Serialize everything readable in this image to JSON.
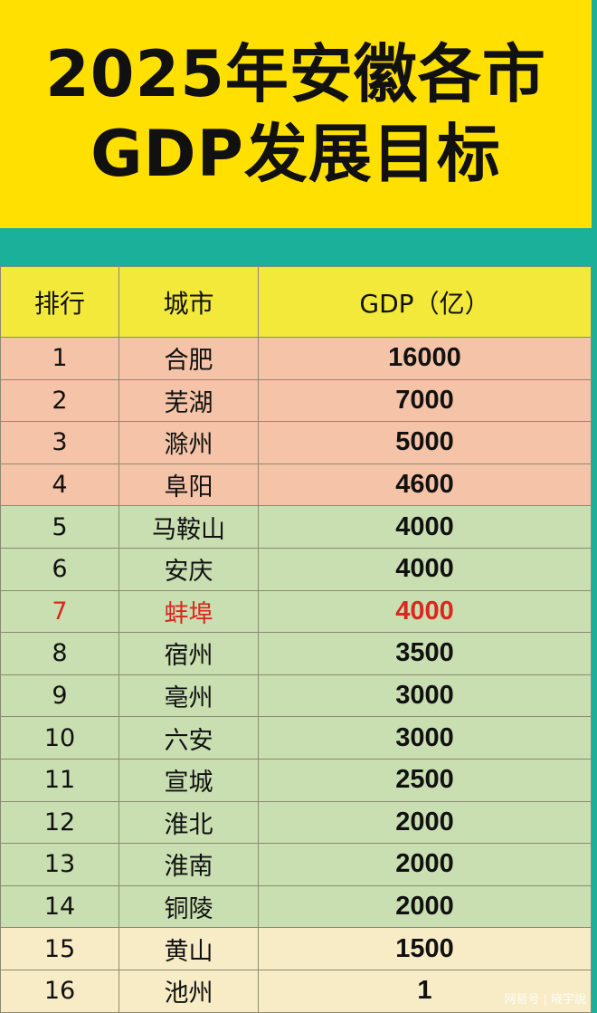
{
  "title": {
    "line1": "2025年安徽各市",
    "line2": "GDP发展目标"
  },
  "table": {
    "headers": [
      "排行",
      "城市",
      "GDP（亿）"
    ],
    "rows": [
      {
        "rank": "1",
        "city": "合肥",
        "gdp": "16000",
        "group": "pink"
      },
      {
        "rank": "2",
        "city": "芜湖",
        "gdp": "7000",
        "group": "pink"
      },
      {
        "rank": "3",
        "city": "滁州",
        "gdp": "5000",
        "group": "pink"
      },
      {
        "rank": "4",
        "city": "阜阳",
        "gdp": "4600",
        "group": "pink"
      },
      {
        "rank": "5",
        "city": "马鞍山",
        "gdp": "4000",
        "group": "green"
      },
      {
        "rank": "6",
        "city": "安庆",
        "gdp": "4000",
        "group": "green"
      },
      {
        "rank": "7",
        "city": "蚌埠",
        "gdp": "4000",
        "group": "green",
        "highlight": "#d8281f"
      },
      {
        "rank": "8",
        "city": "宿州",
        "gdp": "3500",
        "group": "green"
      },
      {
        "rank": "9",
        "city": "亳州",
        "gdp": "3000",
        "group": "green"
      },
      {
        "rank": "10",
        "city": "六安",
        "gdp": "3000",
        "group": "green"
      },
      {
        "rank": "11",
        "city": "宣城",
        "gdp": "2500",
        "group": "green"
      },
      {
        "rank": "12",
        "city": "淮北",
        "gdp": "2000",
        "group": "green"
      },
      {
        "rank": "13",
        "city": "淮南",
        "gdp": "2000",
        "group": "green"
      },
      {
        "rank": "14",
        "city": "铜陵",
        "gdp": "2000",
        "group": "green"
      },
      {
        "rank": "15",
        "city": "黄山",
        "gdp": "1500",
        "group": "cream"
      },
      {
        "rank": "16",
        "city": "池州",
        "gdp": "1",
        "group": "cream"
      }
    ]
  },
  "watermark": "网易号 | 晓宇說",
  "colors": {
    "title_bg": "#ffe000",
    "border": "#1ab09a",
    "header_bg": "#f2e93a",
    "top_tier": "#f5c4a8",
    "mid_tier": "#c9dfb1",
    "low_tier": "#f8ecc6",
    "highlight": "#d8281f"
  }
}
